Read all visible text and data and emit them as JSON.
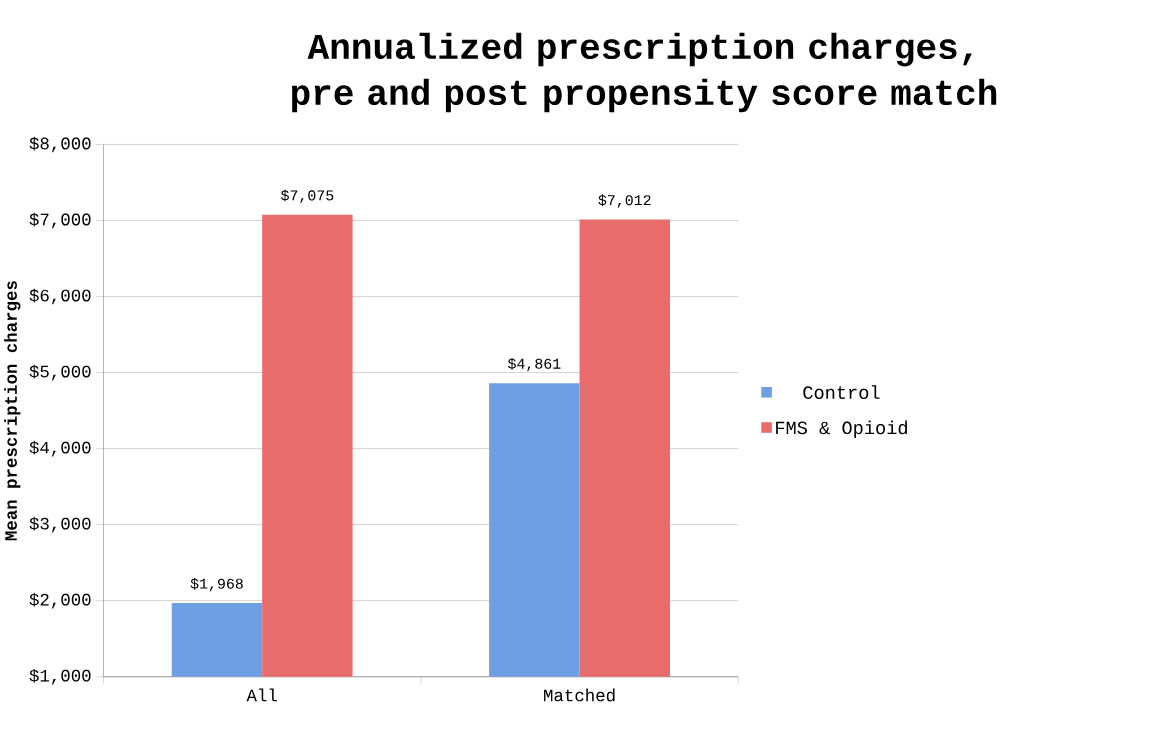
{
  "chart_data": {
    "type": "bar",
    "title": "Annualized prescription charges, pre and post propensity score match",
    "ylabel": "Mean prescription charges",
    "categories": [
      "All",
      "Matched"
    ],
    "series": [
      {
        "name": "Control",
        "color": "#6f9fe3",
        "values": [
          1968,
          4861
        ],
        "value_labels": [
          "$1,968",
          "$4,861"
        ]
      },
      {
        "name": "FMS & Opioid",
        "color": "#e86c6c",
        "values": [
          7075,
          7012
        ],
        "value_labels": [
          "$7,075",
          "$7,012"
        ]
      }
    ],
    "ylim": [
      1000,
      8000
    ],
    "yticks": [
      {
        "value": 1000,
        "label": "$1,000"
      },
      {
        "value": 2000,
        "label": "$2,000"
      },
      {
        "value": 3000,
        "label": "$3,000"
      },
      {
        "value": 4000,
        "label": "$4,000"
      },
      {
        "value": 5000,
        "label": "$5,000"
      },
      {
        "value": 6000,
        "label": "$6,000"
      },
      {
        "value": 7000,
        "label": "$7,000"
      },
      {
        "value": 8000,
        "label": "$8,000"
      }
    ],
    "grid": "y",
    "legend": "right"
  }
}
